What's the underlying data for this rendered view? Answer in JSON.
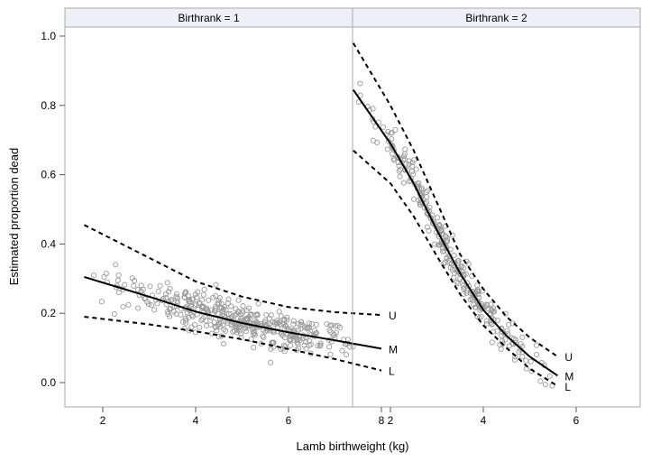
{
  "chart_data": {
    "type": "scatter",
    "ylabel": "Estimated proportion dead",
    "xlabel": "Lamb birthweight (kg)",
    "xlim": [
      0.9,
      8.5
    ],
    "ylim": [
      -0.08,
      1.05
    ],
    "x_ticks": [
      2,
      4,
      6,
      8
    ],
    "y_ticks": [
      0.0,
      0.2,
      0.4,
      0.6,
      0.8,
      1.0
    ],
    "y_tick_labels": [
      "0.0",
      "0.2",
      "0.4",
      "0.6",
      "0.8",
      "1.0"
    ],
    "grid": false,
    "colors": {
      "points": "#9a9a9a",
      "lines": "#000000",
      "panel_header": "#eef0f8",
      "frame": "#a8a8a8"
    },
    "panels": [
      {
        "title": "Birthrank = 1",
        "x_range": [
          1.6,
          8.0
        ],
        "point_cloud": {
          "x_min": 1.6,
          "x_max": 7.4,
          "x_center": 5.0,
          "spread": 0.028,
          "count": 420
        },
        "curves": [
          {
            "label": "U",
            "style": "dashed",
            "points": [
              [
                1.6,
                0.455
              ],
              [
                3.0,
                0.36
              ],
              [
                4.0,
                0.292
              ],
              [
                5.0,
                0.248
              ],
              [
                6.0,
                0.218
              ],
              [
                7.0,
                0.203
              ],
              [
                8.0,
                0.195
              ]
            ]
          },
          {
            "label": "M",
            "style": "solid",
            "points": [
              [
                1.6,
                0.305
              ],
              [
                3.0,
                0.248
              ],
              [
                4.0,
                0.205
              ],
              [
                5.0,
                0.172
              ],
              [
                6.0,
                0.145
              ],
              [
                7.0,
                0.122
              ],
              [
                8.0,
                0.098
              ]
            ]
          },
          {
            "label": "L",
            "style": "dashed",
            "points": [
              [
                1.6,
                0.19
              ],
              [
                3.0,
                0.168
              ],
              [
                4.0,
                0.148
              ],
              [
                5.0,
                0.125
              ],
              [
                6.0,
                0.097
              ],
              [
                7.0,
                0.068
              ],
              [
                8.0,
                0.035
              ]
            ]
          }
        ]
      },
      {
        "title": "Birthrank = 2",
        "x_range": [
          1.2,
          5.7
        ],
        "point_cloud": {
          "x_min": 1.2,
          "x_max": 5.6,
          "x_center": 3.4,
          "spread": 0.025,
          "count": 300
        },
        "curves": [
          {
            "label": "U",
            "style": "dashed",
            "points": [
              [
                1.2,
                0.98
              ],
              [
                2.0,
                0.8
              ],
              [
                2.5,
                0.67
              ],
              [
                3.0,
                0.52
              ],
              [
                3.5,
                0.37
              ],
              [
                4.0,
                0.27
              ],
              [
                4.5,
                0.19
              ],
              [
                5.0,
                0.13
              ],
              [
                5.6,
                0.075
              ]
            ]
          },
          {
            "label": "M",
            "style": "solid",
            "points": [
              [
                1.2,
                0.845
              ],
              [
                2.0,
                0.69
              ],
              [
                2.5,
                0.575
              ],
              [
                3.0,
                0.44
              ],
              [
                3.5,
                0.315
              ],
              [
                4.0,
                0.21
              ],
              [
                4.5,
                0.135
              ],
              [
                5.0,
                0.075
              ],
              [
                5.6,
                0.02
              ]
            ]
          },
          {
            "label": "L",
            "style": "dashed",
            "points": [
              [
                1.2,
                0.67
              ],
              [
                2.0,
                0.575
              ],
              [
                2.5,
                0.48
              ],
              [
                3.0,
                0.365
              ],
              [
                3.5,
                0.255
              ],
              [
                4.0,
                0.165
              ],
              [
                4.5,
                0.1
              ],
              [
                5.0,
                0.04
              ],
              [
                5.6,
                -0.01
              ]
            ]
          }
        ]
      }
    ]
  }
}
